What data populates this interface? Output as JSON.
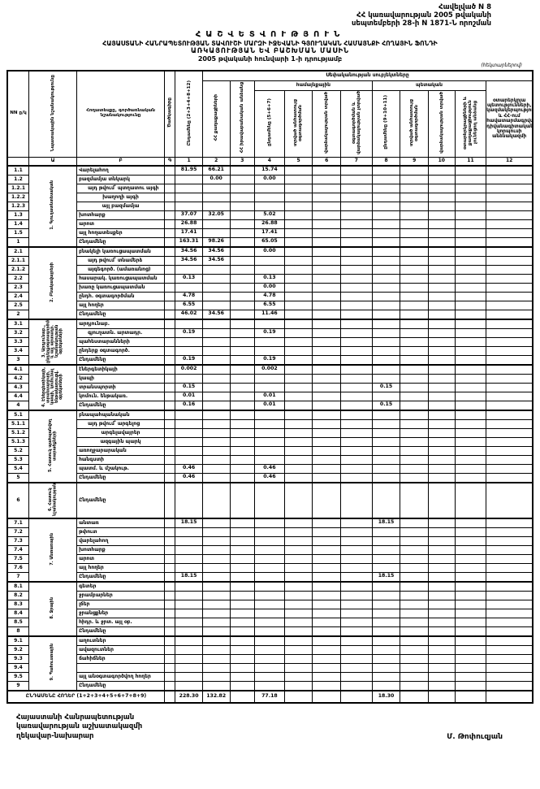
{
  "page": {
    "appendix_line1": "Հավելված N 8",
    "appendix_line2": "ՀՀ կառավարության 2005 թվականի",
    "appendix_line3": "սեպտեմբերի 28-ի N 1871-Ն որոշման",
    "title1": "ՀԱՇՎԵՏՎՈՒԹՅՈՒՆ",
    "title2": "ՀԱՅԱՍՏԱՆԻ ՀԱՆՐԱՊԵՏՈՒԹՅԱՆ ՏԱՎՈՒՇԻ ՄԱՐԶԻ ԻՋԵՎԱՆԻ ԳՅՈՒՂԱԿԱՆ ՀԱՄԱՅՆՔԻ ՀՈՂԱՅԻՆ ՖՈՆԴԻ",
    "title3": "ԱՌԿԱՅՈՒԹՅԱՆ ԵՎ ԲԱՇԽՄԱՆ ՄԱՍԻՆ",
    "title4": "2005 թվականի հունվարի 1-ի դրությամբ",
    "unit_note": "(հեկտարներով)"
  },
  "table": {
    "head": {
      "nn": "NN ը/կ",
      "target": "Նպատակային նշանակությունը",
      "land": "Հողատեսքը, գործառնական նշանակությունը",
      "code": "Ծածկագիրը",
      "col1": "Ընդամենը (2+3+4+8+12)",
      "subjects": "Սեփականության սուբյեկտները",
      "col2": "ՀՀ քաղաքացիների",
      "col3": "ՀՀ իրավաբանական անձանց",
      "community": "համայնքային",
      "state": "պետական",
      "col4": "ընդամենը (5+6+7)",
      "col5": "տրված անհատույց օգտագործման",
      "col6": "վարձակալության տրված",
      "col7": "օգտագործման և վարձակալության չտրված",
      "col8": "ընդամենը (9+10+11)",
      "col9": "տրված անհատույց օգտագործման",
      "col10": "վարձակալության տրված",
      "col11": "օտարերկրացիների և քաղաքացիություն չունեցող անձանց",
      "col12": "օտարերկրյա պետությունների, կազմակերպությունների և ՀՀ-ում հավատարմագրված դիվանագիտական կորպուսի անձնակազմի",
      "letters": [
        "",
        "Ա",
        "Բ",
        "Գ",
        "1",
        "2",
        "3",
        "4",
        "5",
        "6",
        "7",
        "8",
        "9",
        "10",
        "11",
        "12"
      ]
    },
    "sections": [
      {
        "title": "1. Գյուղատնտեսական",
        "rows": [
          {
            "id": "1.1",
            "label": "Վարելահող",
            "v": {
              "1": "81.95",
              "2": "66.21",
              "4": "15.74"
            }
          },
          {
            "id": "1.2",
            "label": "բազմամյա տնկարկ",
            "v": {
              "2": "0.00",
              "4": "0.00"
            }
          },
          {
            "id": "1.2.1",
            "label": "այդ թվում՝ պտղատու այգի",
            "ind": 1
          },
          {
            "id": "1.2.2",
            "label": "խաղողի այգի",
            "ind": 2
          },
          {
            "id": "1.2.3",
            "label": "այլ բազմամյա",
            "ind": 2
          },
          {
            "id": "1.3",
            "label": "խոտհարք",
            "v": {
              "1": "37.07",
              "2": "32.05",
              "4": "5.02"
            }
          },
          {
            "id": "1.4",
            "label": "արոտ",
            "v": {
              "1": "26.88",
              "4": "26.88"
            }
          },
          {
            "id": "1.5",
            "label": "այլ հողատեսքեր",
            "v": {
              "1": "17.41",
              "4": "17.41"
            }
          },
          {
            "id": "1",
            "label": "Ընդամենը",
            "total": true,
            "v": {
              "1": "163.31",
              "2": "98.26",
              "4": "65.05"
            }
          }
        ]
      },
      {
        "title": "2. Բնակավայրերի",
        "rows": [
          {
            "id": "2.1",
            "label": "բնակելի կառուցապատման",
            "v": {
              "1": "34.56",
              "2": "34.56",
              "4": "0.00"
            }
          },
          {
            "id": "2.1.1",
            "label": "այդ թվում՝ տնամերձ",
            "ind": 1,
            "v": {
              "1": "34.56",
              "2": "34.56"
            }
          },
          {
            "id": "2.1.2",
            "label": "այգեգործ. (ամառանոց)",
            "ind": 1
          },
          {
            "id": "2.2",
            "label": "հասարակ. կառուցապատման",
            "v": {
              "1": "0.13",
              "4": "0.13"
            }
          },
          {
            "id": "2.3",
            "label": "խառը կառուցապատման",
            "v": {
              "4": "0.00"
            }
          },
          {
            "id": "2.4",
            "label": "ընդհ. օգտագործման",
            "v": {
              "1": "4.78",
              "4": "4.78"
            }
          },
          {
            "id": "2.5",
            "label": "այլ հողեր",
            "v": {
              "1": "6.55",
              "4": "6.55"
            }
          },
          {
            "id": "2",
            "label": "Ընդամենը",
            "total": true,
            "v": {
              "1": "46.02",
              "2": "34.56",
              "4": "11.46"
            }
          }
        ]
      },
      {
        "title": "3. Արդյունաբ., ընդերքօգտագործման և այլ արտադր. նշանակության օբյեկտների",
        "rows": [
          {
            "id": "3.1",
            "label": "արդյունաբ."
          },
          {
            "id": "3.2",
            "label": "գյուղատն. արտադր.",
            "ind": 1,
            "v": {
              "1": "0.19",
              "4": "0.19"
            }
          },
          {
            "id": "3.3",
            "label": "պահեստարանների"
          },
          {
            "id": "3.4",
            "label": "ընդերք օգտագործ."
          },
          {
            "id": "3",
            "label": "Ընդամենը",
            "total": true,
            "v": {
              "1": "0.19",
              "4": "0.19"
            }
          }
        ]
      },
      {
        "title": "4. Էներգետիկայի, տրանսպորտի, կապի, կոմունալ ենթակառուցվ. օբյեկտների",
        "rows": [
          {
            "id": "4.1",
            "label": "էներգետիկայի",
            "v": {
              "1": "0.002",
              "4": "0.002"
            }
          },
          {
            "id": "4.2",
            "label": "կապի"
          },
          {
            "id": "4.3",
            "label": "տրանսպորտի",
            "v": {
              "1": "0.15",
              "8": "0.15"
            }
          },
          {
            "id": "4.4",
            "label": "կոմուն. ենթակառ.",
            "v": {
              "1": "0.01",
              "4": "0.01"
            }
          },
          {
            "id": "4",
            "label": "Ընդամենը",
            "total": true,
            "v": {
              "1": "0.16",
              "4": "0.01",
              "8": "0.15"
            }
          }
        ]
      },
      {
        "title": "5. Հատուկ պահպանվող տարածքների",
        "rows": [
          {
            "id": "5.1",
            "label": "բնապահպանական"
          },
          {
            "id": "5.1.1",
            "label": "այդ թվում՝ արգելոց",
            "ind": 1
          },
          {
            "id": "5.1.2",
            "label": "արգելավայրեր",
            "ind": 2
          },
          {
            "id": "5.1.3",
            "label": "ազգային պարկ",
            "ind": 2
          },
          {
            "id": "5.2",
            "label": "առողջարարական"
          },
          {
            "id": "5.3",
            "label": "հանգստի"
          },
          {
            "id": "5.4",
            "label": "պատմ. և մշակութ.",
            "v": {
              "1": "0.46",
              "4": "0.46"
            }
          },
          {
            "id": "5",
            "label": "Ընդամենը",
            "total": true,
            "v": {
              "1": "0.46",
              "4": "0.46"
            }
          }
        ]
      },
      {
        "title": "6. Հատուկ նշանակության",
        "rows": [
          {
            "id": "6",
            "label": "Ընդամենը",
            "total": true,
            "tall": true
          }
        ]
      },
      {
        "title": "7. Անտառային",
        "rows": [
          {
            "id": "7.1",
            "label": "անտառ",
            "v": {
              "1": "18.15",
              "8": "18.15"
            }
          },
          {
            "id": "7.2",
            "label": "թփուտ"
          },
          {
            "id": "7.3",
            "label": "վարելահող"
          },
          {
            "id": "7.4",
            "label": "խոտհարք"
          },
          {
            "id": "7.5",
            "label": "արոտ"
          },
          {
            "id": "7.6",
            "label": "այլ հողեր"
          },
          {
            "id": "7",
            "label": "Ընդամենը",
            "total": true,
            "v": {
              "1": "18.15",
              "8": "18.15"
            }
          }
        ]
      },
      {
        "title": "8. Ջրային",
        "rows": [
          {
            "id": "8.1",
            "label": "գետեր"
          },
          {
            "id": "8.2",
            "label": "ջրամբարներ"
          },
          {
            "id": "8.3",
            "label": "լճեր"
          },
          {
            "id": "8.4",
            "label": "ջրանցքներ"
          },
          {
            "id": "8.5",
            "label": "հիդր. և ջրտ. այլ օբ."
          },
          {
            "id": "8",
            "label": "Ընդամենը",
            "total": true
          }
        ]
      },
      {
        "title": "9. Պահուստային",
        "rows": [
          {
            "id": "9.1",
            "label": "աղուտներ"
          },
          {
            "id": "9.2",
            "label": "ավազուտներ"
          },
          {
            "id": "9.3",
            "label": "ճահիճներ"
          },
          {
            "id": "9.4",
            "label": ""
          },
          {
            "id": "9.5",
            "label": "այլ անօգտագործվող հողեր"
          },
          {
            "id": "9",
            "label": "Ընդամենը",
            "total": true
          }
        ]
      }
    ],
    "grand": {
      "label": "ԸՆԴԱՄԵՆԸ ՀՈՂԵՐ (1+2+3+4+5+6+7+8+9)",
      "values": {
        "1": "228.30",
        "2": "132.82",
        "4": "77.18",
        "8": "18.30"
      }
    }
  },
  "footer": {
    "left_line1": "Հայաստանի Հանրապետության",
    "left_line2": "կառավարության աշխատակազմի",
    "left_line3": "ղեկավար-նախարար",
    "signer": "Մ. Թոփուզյան"
  }
}
